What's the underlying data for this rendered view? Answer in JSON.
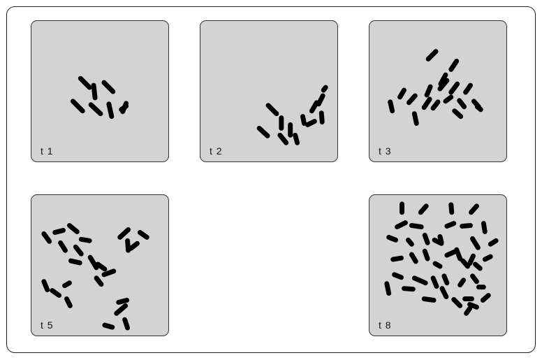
{
  "panels": [
    {
      "id": "t1",
      "label": "t 1"
    },
    {
      "id": "t2",
      "label": "t 2"
    },
    {
      "id": "t3",
      "label": "t 3"
    },
    {
      "id": "t5",
      "label": "t 5"
    },
    {
      "id": "t8",
      "label": "t 8"
    }
  ],
  "colors": {
    "panel_bg": "#d3d3d3",
    "bacterium": "#000000",
    "border": "#333333"
  }
}
